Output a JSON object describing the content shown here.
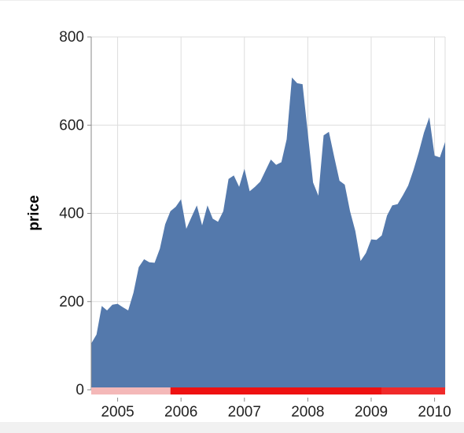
{
  "chart_data": {
    "type": "area",
    "ylabel": "price",
    "xlabel": "",
    "x_ticks": [
      "2005",
      "2006",
      "2007",
      "2008",
      "2009",
      "2010"
    ],
    "y_ticks": [
      0,
      200,
      400,
      600,
      800
    ],
    "ylim": [
      0,
      800
    ],
    "xlim": [
      "2004-08",
      "2010-03"
    ],
    "grid": true,
    "fill_color": "#5479ac",
    "x": [
      "2004-08",
      "2004-09",
      "2004-10",
      "2004-11",
      "2004-12",
      "2005-01",
      "2005-02",
      "2005-03",
      "2005-04",
      "2005-05",
      "2005-06",
      "2005-07",
      "2005-08",
      "2005-09",
      "2005-10",
      "2005-11",
      "2005-12",
      "2006-01",
      "2006-02",
      "2006-03",
      "2006-04",
      "2006-05",
      "2006-06",
      "2006-07",
      "2006-08",
      "2006-09",
      "2006-10",
      "2006-11",
      "2006-12",
      "2007-01",
      "2007-02",
      "2007-03",
      "2007-04",
      "2007-05",
      "2007-06",
      "2007-07",
      "2007-08",
      "2007-09",
      "2007-10",
      "2007-11",
      "2007-12",
      "2008-01",
      "2008-02",
      "2008-03",
      "2008-04",
      "2008-05",
      "2008-06",
      "2008-07",
      "2008-08",
      "2008-09",
      "2008-10",
      "2008-11",
      "2008-12",
      "2009-01",
      "2009-02",
      "2009-03",
      "2009-04",
      "2009-05",
      "2009-06",
      "2009-07",
      "2009-08",
      "2009-09",
      "2009-10",
      "2009-11",
      "2009-12",
      "2010-01",
      "2010-02",
      "2010-03"
    ],
    "values": [
      105,
      125,
      190,
      180,
      193,
      195,
      187,
      180,
      220,
      278,
      296,
      289,
      288,
      320,
      375,
      405,
      415,
      432,
      365,
      392,
      418,
      373,
      418,
      388,
      381,
      405,
      478,
      486,
      460,
      501,
      450,
      460,
      472,
      497,
      522,
      510,
      516,
      568,
      708,
      695,
      693,
      582,
      470,
      440,
      577,
      585,
      528,
      474,
      465,
      405,
      360,
      292,
      310,
      341,
      340,
      350,
      395,
      418,
      421,
      441,
      463,
      498,
      538,
      583,
      618,
      531,
      527,
      562
    ],
    "brush": {
      "color": "#ee1111",
      "faded_color": "#f4b8b8",
      "selection": [
        "2005-11",
        "2009-03"
      ]
    }
  }
}
